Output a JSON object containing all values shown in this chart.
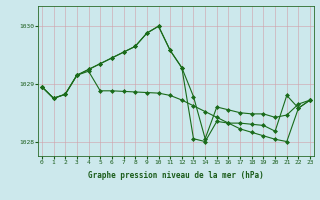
{
  "title": "Graphe pression niveau de la mer (hPa)",
  "background_color": "#cce8ec",
  "grid_color": "#b8d4d8",
  "line_color": "#1a6b1a",
  "hours": [
    0,
    1,
    2,
    3,
    4,
    5,
    6,
    7,
    8,
    9,
    10,
    11,
    12,
    13,
    14,
    15,
    16,
    17,
    18,
    19,
    20,
    21,
    22,
    23
  ],
  "series1": [
    1028.95,
    1028.75,
    1028.82,
    1029.15,
    1029.25,
    1029.35,
    1029.45,
    1029.55,
    1029.65,
    1029.88,
    1030.0,
    1029.58,
    1029.28,
    1028.78,
    1028.05,
    1028.6,
    1028.55,
    1028.5,
    1028.48,
    1028.48,
    1028.42,
    1028.46,
    1028.65,
    1028.72
  ],
  "series2": [
    1028.95,
    1028.75,
    1028.82,
    1029.15,
    1029.25,
    1029.35,
    1029.45,
    1029.55,
    1029.65,
    1029.88,
    1030.0,
    1029.58,
    1029.28,
    1028.05,
    1028.0,
    1028.35,
    1028.32,
    1028.32,
    1028.3,
    1028.28,
    1028.18,
    1028.8,
    1028.58,
    1028.72
  ],
  "series3": [
    1028.95,
    1028.75,
    1028.82,
    1029.15,
    1029.22,
    1028.88,
    1028.88,
    1028.87,
    1028.86,
    1028.85,
    1028.84,
    1028.8,
    1028.72,
    1028.62,
    1028.52,
    1028.42,
    1028.32,
    1028.22,
    1028.16,
    1028.1,
    1028.04,
    1028.0,
    1028.58,
    1028.72
  ],
  "ylim": [
    1027.75,
    1030.35
  ],
  "yticks": [
    1028,
    1029,
    1030
  ],
  "xticks": [
    0,
    1,
    2,
    3,
    4,
    5,
    6,
    7,
    8,
    9,
    10,
    11,
    12,
    13,
    14,
    15,
    16,
    17,
    18,
    19,
    20,
    21,
    22,
    23
  ]
}
